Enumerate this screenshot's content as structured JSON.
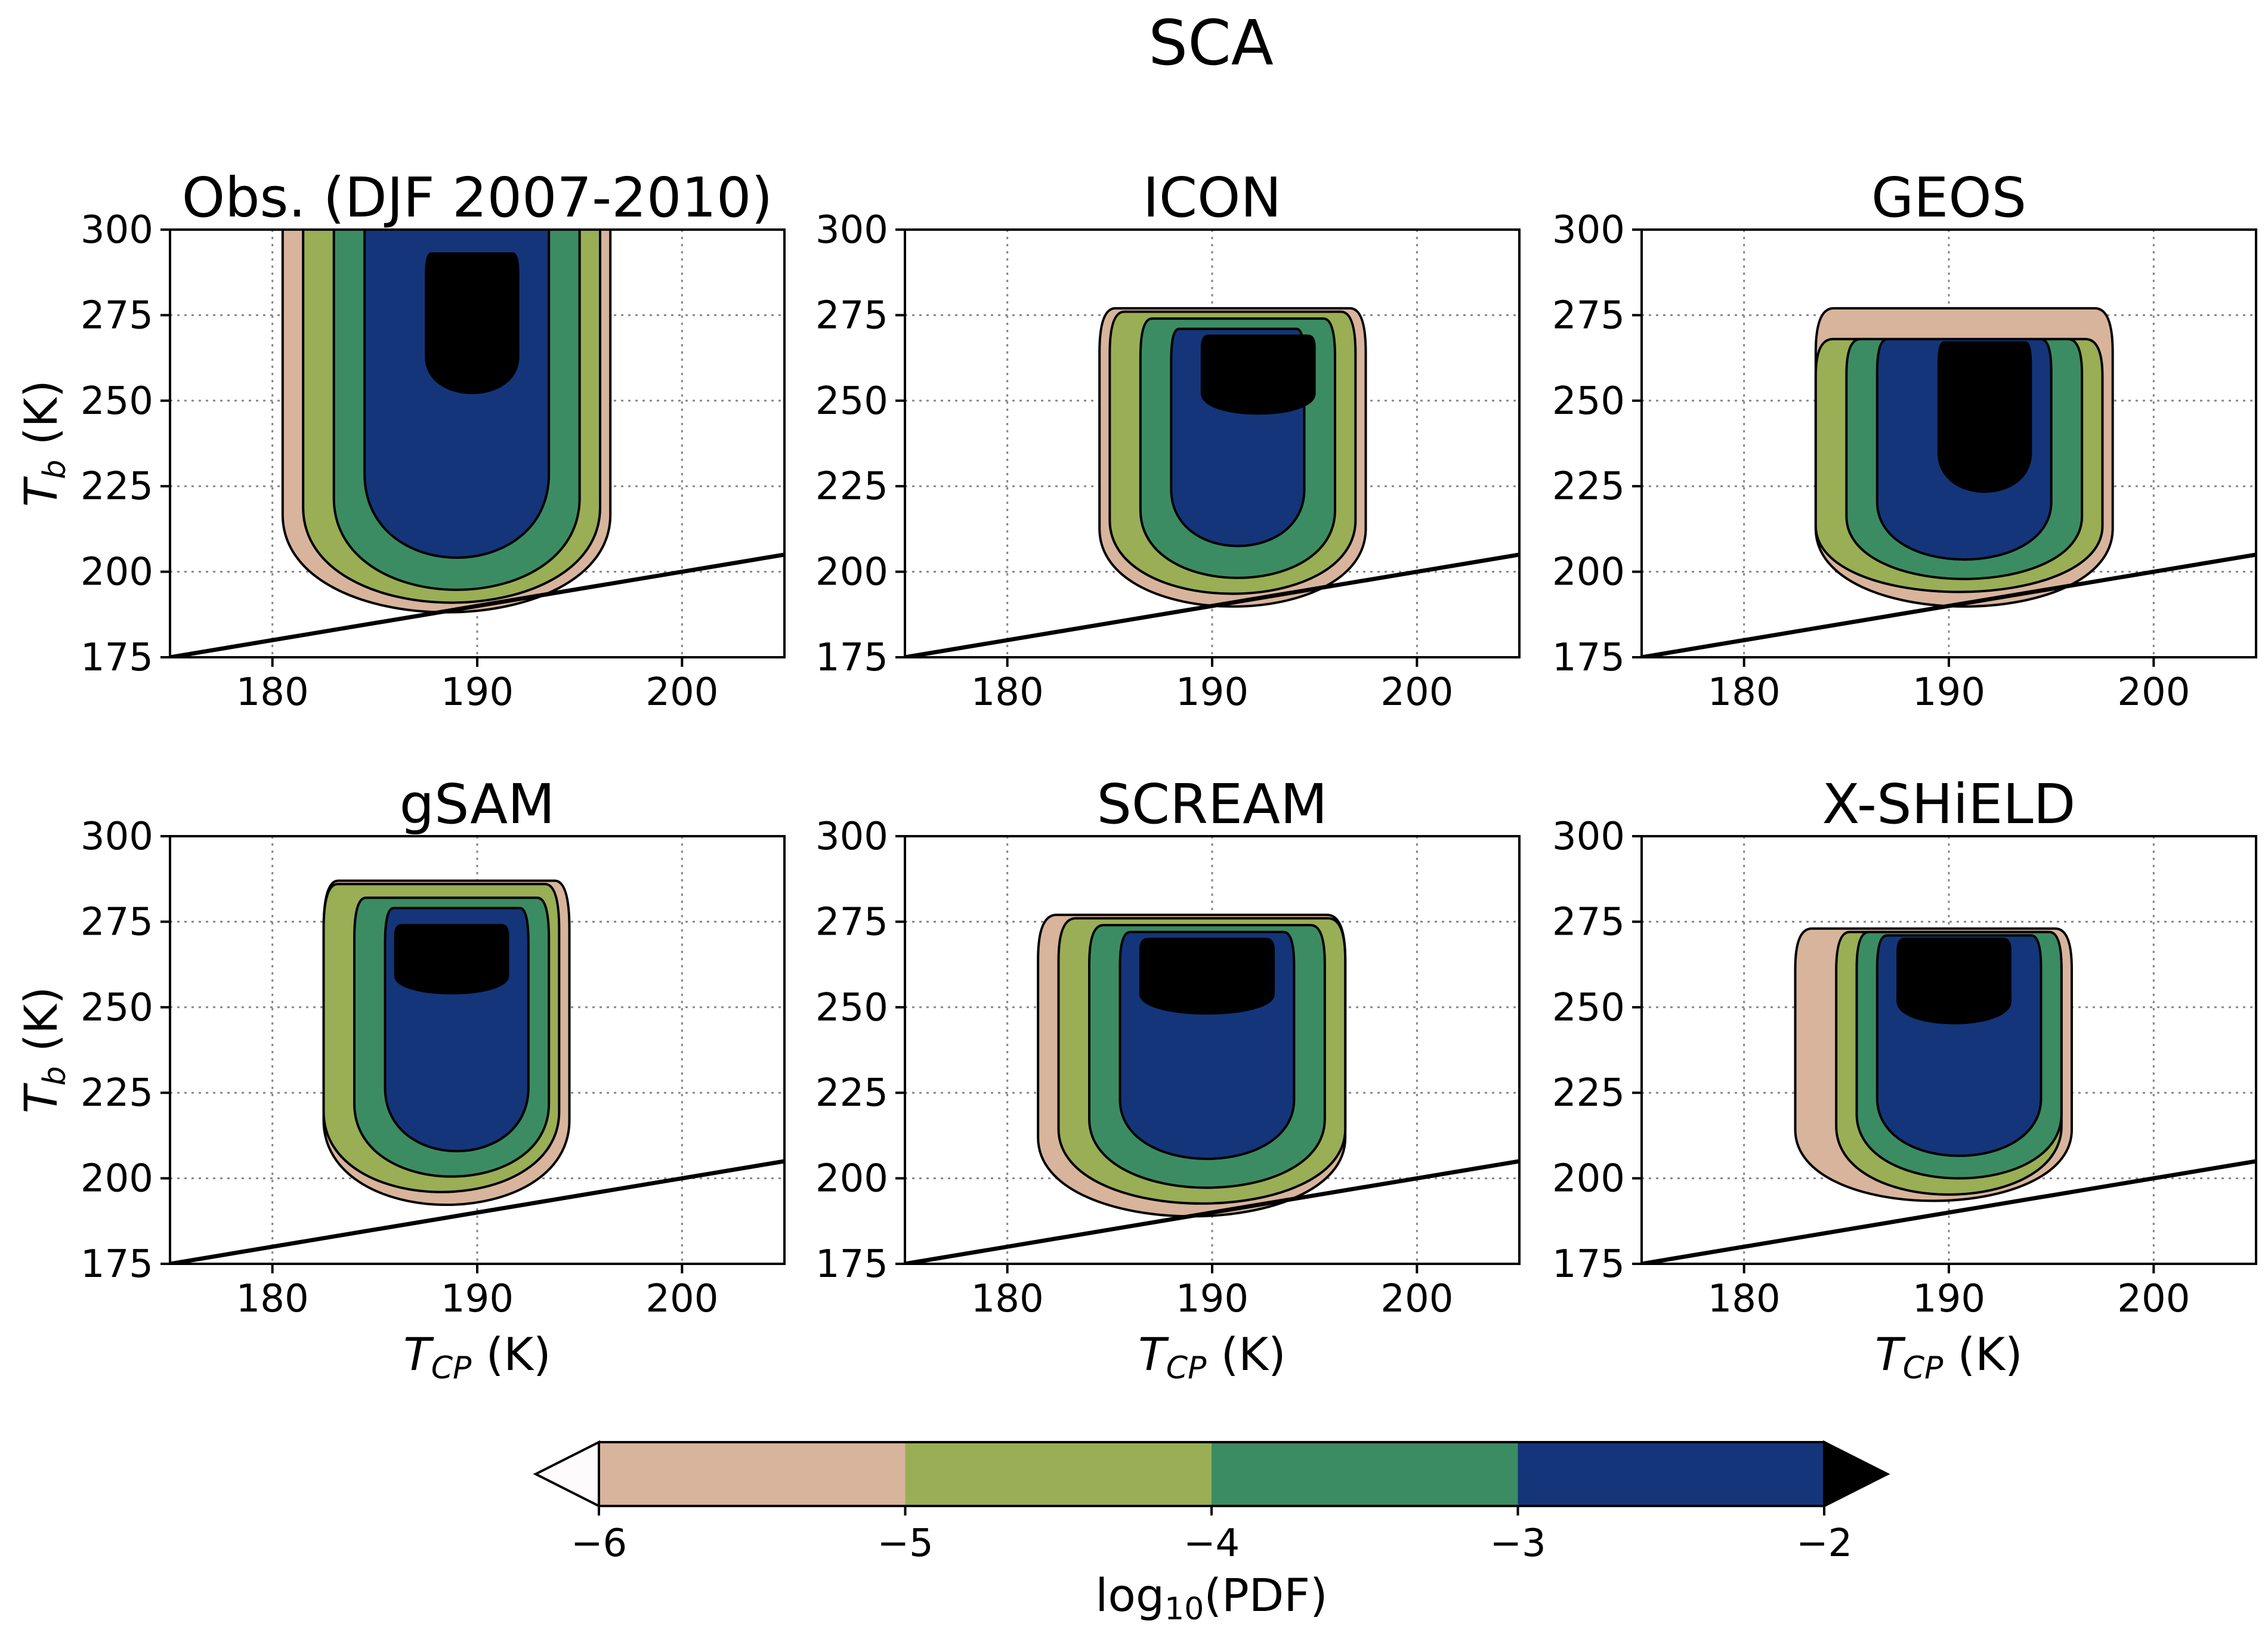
{
  "figure": {
    "title": "SCA"
  },
  "colors": {
    "level_minus6_to_minus5": "#d8b49c",
    "level_minus5_to_minus4": "#9aae56",
    "level_minus4_to_minus3": "#3c8c63",
    "level_minus3_to_minus2": "#14357a",
    "level_above_minus2": "#000000",
    "level_below_minus6": "#fdfbfb"
  },
  "shared_axes": {
    "x_ticks": [
      "180",
      "190",
      "200"
    ],
    "y_ticks": [
      "175",
      "200",
      "225",
      "250",
      "275",
      "300"
    ],
    "ylabel_main": "T",
    "ylabel_sub": "b",
    "ylabel_unit": " (K)",
    "xlabel_main": "T",
    "xlabel_sub": "CP",
    "xlabel_unit": " (K)",
    "xlim": [
      175,
      205
    ],
    "ylim": [
      175,
      300
    ],
    "grid": true,
    "reference_line": {
      "x": [
        175,
        205
      ],
      "y": [
        175,
        205
      ]
    }
  },
  "colorbar": {
    "label_main": "log",
    "label_sub": "10",
    "label_rest": "(PDF)",
    "ticks": [
      "−6",
      "−5",
      "−4",
      "−3",
      "−2"
    ],
    "extend": "both"
  },
  "chart_data": [
    {
      "type": "contourf",
      "title": "Obs. (DJF 2007-2010)",
      "xlim": [
        175,
        205
      ],
      "ylim": [
        175,
        300
      ],
      "levels": [
        -6,
        -5,
        -4,
        -3,
        -2
      ],
      "region_extents": [
        {
          "level": -6,
          "x": [
            180.5,
            196.5
          ],
          "y": [
            181,
            300
          ]
        },
        {
          "level": -5,
          "x": [
            181.5,
            196.0
          ],
          "y": [
            184,
            300
          ]
        },
        {
          "level": -4,
          "x": [
            183.0,
            195.0
          ],
          "y": [
            188,
            300
          ]
        },
        {
          "level": -3,
          "x": [
            184.5,
            193.5
          ],
          "y": [
            198,
            300
          ]
        },
        {
          "level": -2,
          "x": [
            187.5,
            192.0
          ],
          "y": [
            250,
            293
          ]
        }
      ]
    },
    {
      "type": "contourf",
      "title": "ICON",
      "xlim": [
        175,
        205
      ],
      "ylim": [
        175,
        300
      ],
      "levels": [
        -6,
        -5,
        -4,
        -3,
        -2
      ],
      "region_extents": [
        {
          "level": -6,
          "x": [
            184.5,
            197.5
          ],
          "y": [
            185,
            277
          ]
        },
        {
          "level": -5,
          "x": [
            185.0,
            197.0
          ],
          "y": [
            189,
            276
          ]
        },
        {
          "level": -4,
          "x": [
            186.5,
            196.0
          ],
          "y": [
            194,
            274
          ]
        },
        {
          "level": -3,
          "x": [
            188.0,
            194.5
          ],
          "y": [
            204,
            271
          ]
        },
        {
          "level": -2,
          "x": [
            189.5,
            195.0
          ],
          "y": [
            245,
            269
          ]
        }
      ]
    },
    {
      "type": "contourf",
      "title": "GEOS",
      "xlim": [
        175,
        205
      ],
      "ylim": [
        175,
        300
      ],
      "levels": [
        -6,
        -5,
        -4,
        -3,
        -2
      ],
      "region_extents": [
        {
          "level": -6,
          "x": [
            183.5,
            198.0
          ],
          "y": [
            185,
            277
          ]
        },
        {
          "level": -5,
          "x": [
            183.5,
            197.5
          ],
          "y": [
            190,
            268
          ]
        },
        {
          "level": -4,
          "x": [
            185.0,
            196.5
          ],
          "y": [
            194,
            268
          ]
        },
        {
          "level": -3,
          "x": [
            186.5,
            195.0
          ],
          "y": [
            200,
            268
          ]
        },
        {
          "level": -2,
          "x": [
            189.5,
            194.0
          ],
          "y": [
            221,
            267
          ]
        }
      ]
    },
    {
      "type": "contourf",
      "title": "gSAM",
      "xlim": [
        175,
        205
      ],
      "ylim": [
        175,
        300
      ],
      "levels": [
        -6,
        -5,
        -4,
        -3,
        -2
      ],
      "region_extents": [
        {
          "level": -6,
          "x": [
            182.5,
            194.5
          ],
          "y": [
            187,
            287
          ]
        },
        {
          "level": -5,
          "x": [
            182.5,
            194.0
          ],
          "y": [
            191,
            286
          ]
        },
        {
          "level": -4,
          "x": [
            184.0,
            193.5
          ],
          "y": [
            196,
            282
          ]
        },
        {
          "level": -3,
          "x": [
            185.5,
            192.5
          ],
          "y": [
            204,
            279
          ]
        },
        {
          "level": -2,
          "x": [
            186.0,
            191.5
          ],
          "y": [
            253,
            274
          ]
        }
      ]
    },
    {
      "type": "contourf",
      "title": "SCREAM",
      "xlim": [
        175,
        205
      ],
      "ylim": [
        175,
        300
      ],
      "levels": [
        -6,
        -5,
        -4,
        -3,
        -2
      ],
      "region_extents": [
        {
          "level": -6,
          "x": [
            181.5,
            196.5
          ],
          "y": [
            184,
            277
          ]
        },
        {
          "level": -5,
          "x": [
            182.5,
            196.5
          ],
          "y": [
            188,
            276
          ]
        },
        {
          "level": -4,
          "x": [
            184.0,
            195.5
          ],
          "y": [
            193,
            274
          ]
        },
        {
          "level": -3,
          "x": [
            185.5,
            194.0
          ],
          "y": [
            202,
            272
          ]
        },
        {
          "level": -2,
          "x": [
            186.5,
            193.0
          ],
          "y": [
            247,
            270
          ]
        }
      ]
    },
    {
      "type": "contourf",
      "title": "X-SHiELD",
      "xlim": [
        175,
        205
      ],
      "ylim": [
        175,
        300
      ],
      "levels": [
        -6,
        -5,
        -4,
        -3,
        -2
      ],
      "region_extents": [
        {
          "level": -6,
          "x": [
            182.5,
            196.0
          ],
          "y": [
            189,
            273
          ]
        },
        {
          "level": -5,
          "x": [
            184.5,
            195.5
          ],
          "y": [
            191,
            272
          ]
        },
        {
          "level": -4,
          "x": [
            185.5,
            195.5
          ],
          "y": [
            196,
            272
          ]
        },
        {
          "level": -3,
          "x": [
            186.5,
            194.5
          ],
          "y": [
            203,
            271
          ]
        },
        {
          "level": -2,
          "x": [
            187.5,
            193.0
          ],
          "y": [
            244,
            270
          ]
        }
      ]
    }
  ]
}
